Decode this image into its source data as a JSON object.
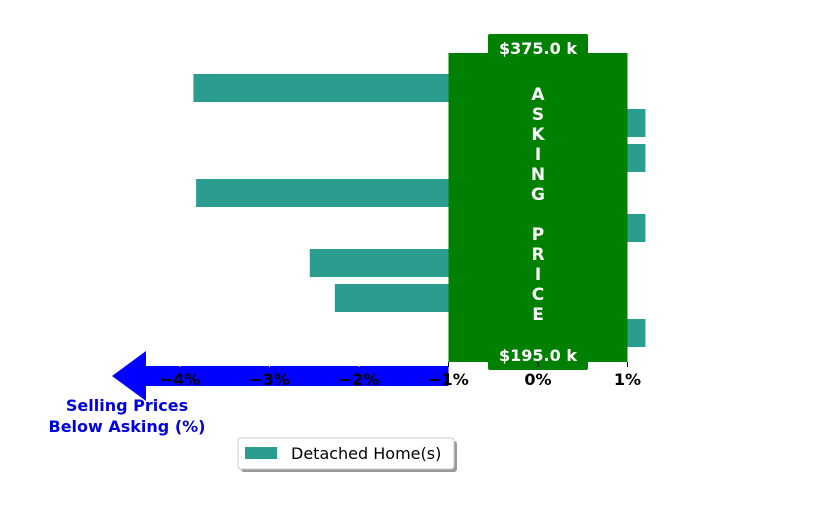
{
  "chart_data": {
    "type": "bar",
    "orientation": "horizontal",
    "series": [
      {
        "name": "Detached Home(s)",
        "color": "#2a9d8f",
        "values": [
          -3.85,
          1.2,
          1.2,
          -3.82,
          1.2,
          -2.55,
          -2.27,
          1.2
        ]
      }
    ],
    "x_ticks": [
      {
        "value": -4,
        "label": "−4%"
      },
      {
        "value": -3,
        "label": "−3%"
      },
      {
        "value": -2,
        "label": "−2%"
      },
      {
        "value": -1,
        "label": "−1%"
      },
      {
        "value": 0,
        "label": "0%"
      },
      {
        "value": 1,
        "label": "1%"
      }
    ],
    "xlim": [
      -5.0,
      1.2
    ],
    "asking_price_band": {
      "from": -1,
      "to": 1,
      "color": "#008000",
      "label": "ASKING  PRICE",
      "top_price": "$375.0 k",
      "bottom_price": "$195.0 k"
    },
    "xlabel": {
      "line1": "Selling Prices",
      "line2": "Below Asking (%)",
      "color": "#0000e0"
    },
    "arrow_color": "#0000ff",
    "legend": {
      "placement": "bottom-center",
      "label": "Detached Home(s)"
    },
    "grid": false
  }
}
